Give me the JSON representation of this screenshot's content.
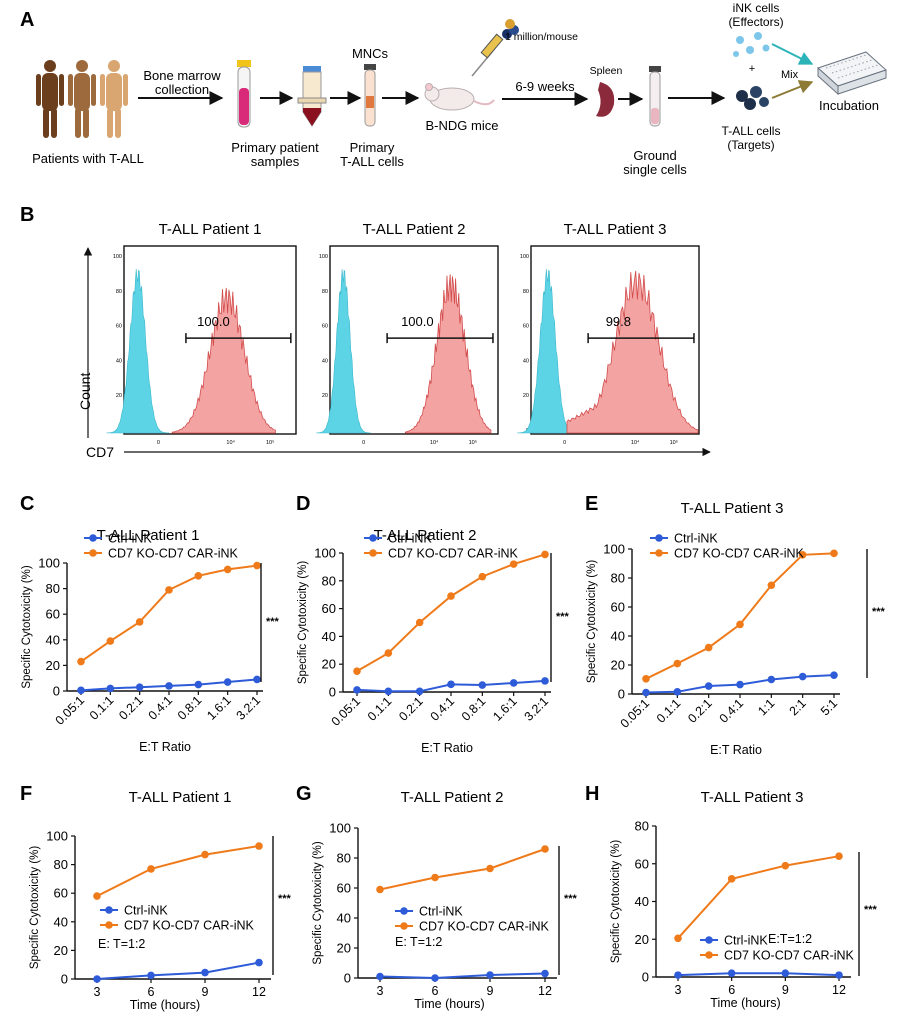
{
  "schematic": {
    "panel_letter": "A",
    "patients_label": "Patients with T-ALL",
    "step1_label_line1": "Bone marrow",
    "step1_label_line2": "collection",
    "samples_label_line1": "Primary patient",
    "samples_label_line2": "samples",
    "mncs_label": "MNCs",
    "primary_label_line1": "Primary",
    "primary_label_line2": "T-ALL cells",
    "dose_label": "1 million/mouse",
    "mice_label": "B-NDG mice",
    "weeks_label": "6-9 weeks",
    "spleen_label": "Spleen",
    "ground_label_line1": "Ground",
    "ground_label_line2": "single cells",
    "effectors_line1": "iNK cells",
    "effectors_line2": "(Effectors)",
    "plus_sign": "+",
    "mix_label": "Mix",
    "targets_line1": "T-ALL cells",
    "targets_line2": "(Targets)",
    "incubation_label": "Incubation",
    "colors": {
      "skin_dark": "#6b3f1e",
      "skin_mid": "#9c6a3c",
      "skin_light": "#d9a571",
      "arrow_teal": "#2bb3b8",
      "arrow_olive": "#8c7a35"
    }
  },
  "flow": {
    "panel_letter": "B",
    "y_axis_label": "Count",
    "x_axis_label": "CD7",
    "y_tick_labels": [
      "0",
      "20",
      "40",
      "60",
      "80",
      "100"
    ],
    "x_tick_labels": [
      "0",
      "10⁴",
      "10⁵"
    ],
    "colors": {
      "control_fill": "#5dd4e6",
      "cd7_fill": "#f4a3a3",
      "cd7_stroke": "#d24b4b"
    },
    "panels": [
      {
        "title": "T-ALL Patient 1",
        "gate_value": "100.0"
      },
      {
        "title": "T-ALL Patient 2",
        "gate_value": "100.0"
      },
      {
        "title": "T-ALL Patient 3",
        "gate_value": "99.8"
      }
    ]
  },
  "chart_data": [
    {
      "panel": "C",
      "type": "line",
      "title": "T-ALL Patient 1",
      "xlabel": "E:T Ratio",
      "ylabel": "Specific Cytotoxicity (%)",
      "categories": [
        "0.05:1",
        "0.1:1",
        "0.2:1",
        "0.4:1",
        "0.8:1",
        "1.6:1",
        "3.2:1"
      ],
      "ylim": [
        0,
        100
      ],
      "yticks": [
        "0",
        "20",
        "40",
        "60",
        "80",
        "100"
      ],
      "series": [
        {
          "name": "Ctrl-iNK",
          "color": "#2e5bd8",
          "values": [
            0.5,
            2,
            3,
            4,
            5,
            7,
            9
          ]
        },
        {
          "name": "CD7 KO-CD7 CAR-iNK",
          "color": "#ef7a1a",
          "values": [
            23,
            39,
            54,
            79,
            90,
            95,
            98
          ]
        }
      ],
      "significance": "***",
      "legend": "top-left"
    },
    {
      "panel": "D",
      "type": "line",
      "title": "T-ALL Patient 2",
      "xlabel": "E:T Ratio",
      "ylabel": "Specific Cytotoxicity (%)",
      "categories": [
        "0.05:1",
        "0.1:1",
        "0.2:1",
        "0.4:1",
        "0.8:1",
        "1.6:1",
        "3.2:1"
      ],
      "ylim": [
        0,
        100
      ],
      "yticks": [
        "0",
        "20",
        "40",
        "60",
        "80",
        "100"
      ],
      "series": [
        {
          "name": "Ctrl-iNK",
          "color": "#2e5bd8",
          "values": [
            1.5,
            0.5,
            0.5,
            5.5,
            5,
            6.5,
            8
          ]
        },
        {
          "name": "CD7 KO-CD7 CAR-iNK",
          "color": "#ef7a1a",
          "values": [
            15,
            28,
            50,
            69,
            83,
            92,
            99
          ]
        }
      ],
      "significance": "***",
      "legend": "top-left"
    },
    {
      "panel": "E",
      "type": "line",
      "title": "T-ALL Patient 3",
      "xlabel": "E:T Ratio",
      "ylabel": "Specific Cytotoxicity (%)",
      "categories": [
        "0.05:1",
        "0.1:1",
        "0.2:1",
        "0.4:1",
        "1:1",
        "2:1",
        "5:1"
      ],
      "ylim": [
        0,
        100
      ],
      "yticks": [
        "0",
        "20",
        "40",
        "60",
        "80",
        "100"
      ],
      "series": [
        {
          "name": "Ctrl-iNK",
          "color": "#2e5bd8",
          "values": [
            1,
            1.5,
            5.5,
            6.5,
            10,
            12,
            13
          ]
        },
        {
          "name": "CD7 KO-CD7 CAR-iNK",
          "color": "#ef7a1a",
          "values": [
            10.5,
            21,
            32,
            48,
            75,
            96,
            97
          ]
        }
      ],
      "significance": "***",
      "legend": "top-left"
    },
    {
      "panel": "F",
      "type": "line",
      "title": "T-ALL Patient 1",
      "xlabel": "Time (hours)",
      "ylabel": "Specific Cytotoxicity (%)",
      "categories": [
        "3",
        "6",
        "9",
        "12"
      ],
      "ylim": [
        0,
        100
      ],
      "yticks": [
        "0",
        "20",
        "40",
        "60",
        "80",
        "100"
      ],
      "series": [
        {
          "name": "Ctrl-iNK",
          "color": "#2e5bd8",
          "values": [
            0,
            2.5,
            4.5,
            11.5
          ]
        },
        {
          "name": "CD7 KO-CD7 CAR-iNK",
          "color": "#ef7a1a",
          "values": [
            58,
            77,
            87,
            93
          ]
        }
      ],
      "note": "E: T=1:2",
      "significance": "***",
      "legend": "bottom-left"
    },
    {
      "panel": "G",
      "type": "line",
      "title": "T-ALL Patient 2",
      "xlabel": "Time (hours)",
      "ylabel": "Specific Cytotoxicity (%)",
      "categories": [
        "3",
        "6",
        "9",
        "12"
      ],
      "ylim": [
        0,
        100
      ],
      "yticks": [
        "0",
        "20",
        "40",
        "60",
        "80",
        "100"
      ],
      "series": [
        {
          "name": "Ctrl-iNK",
          "color": "#2e5bd8",
          "values": [
            1,
            0,
            2,
            3
          ]
        },
        {
          "name": "CD7 KO-CD7 CAR-iNK",
          "color": "#ef7a1a",
          "values": [
            59,
            67,
            73,
            86
          ]
        }
      ],
      "note": "E: T=1:2",
      "significance": "***",
      "legend": "bottom-left"
    },
    {
      "panel": "H",
      "type": "line",
      "title": "T-ALL Patient 3",
      "xlabel": "Time (hours)",
      "ylabel": "Specific Cytotoxicity (%)",
      "categories": [
        "3",
        "6",
        "9",
        "12"
      ],
      "ylim": [
        0,
        80
      ],
      "yticks": [
        "0",
        "20",
        "40",
        "60",
        "80"
      ],
      "series": [
        {
          "name": "Ctrl-iNK",
          "color": "#2e5bd8",
          "values": [
            1,
            2,
            2,
            1
          ]
        },
        {
          "name": "CD7 KO-CD7 CAR-iNK",
          "color": "#ef7a1a",
          "values": [
            20.5,
            52,
            59,
            64
          ]
        }
      ],
      "note": "E:T=1:2",
      "significance": "***",
      "legend": "bottom-left"
    }
  ]
}
